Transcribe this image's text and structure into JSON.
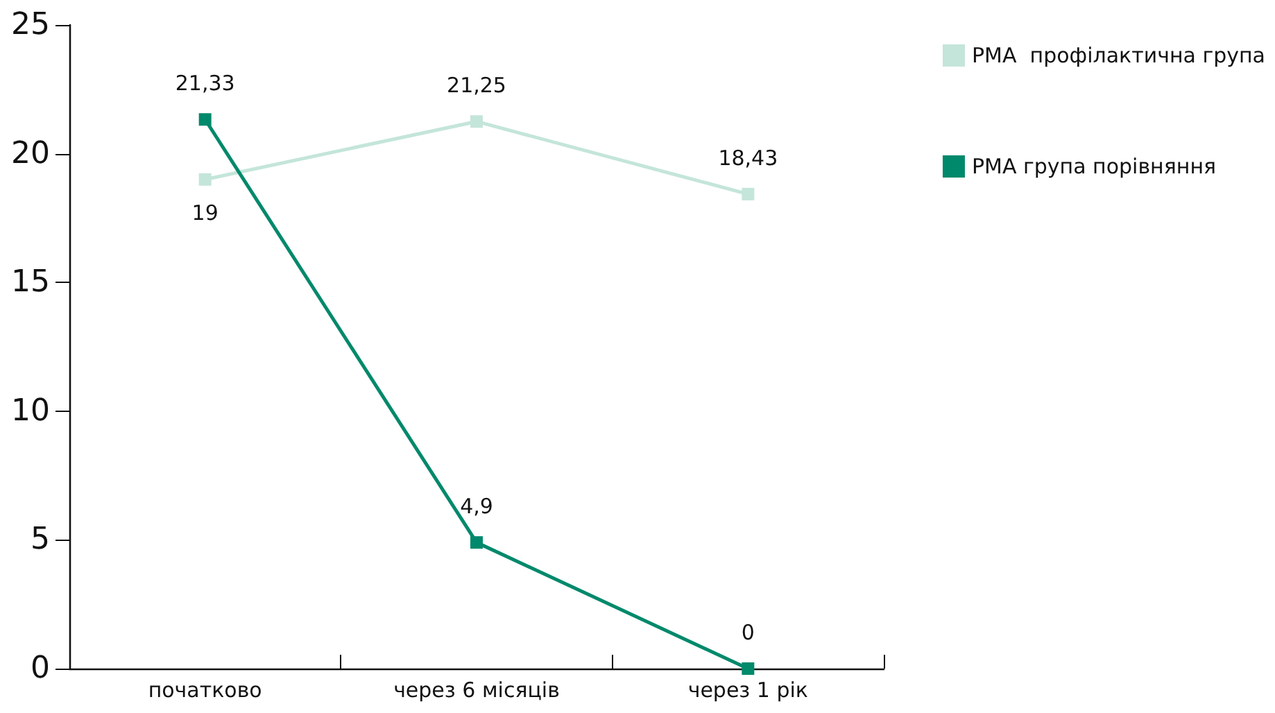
{
  "chart_data": {
    "type": "line",
    "categories": [
      "початково",
      "через 6 місяців",
      "через 1 рік"
    ],
    "series": [
      {
        "name": "РМА  профілактична група",
        "color": "#c4e5da",
        "values": [
          19,
          21.25,
          18.43
        ],
        "value_labels": [
          "19",
          "21,25",
          "18,43"
        ]
      },
      {
        "name": "РМА група порівняння",
        "color": "#00896b",
        "values": [
          21.33,
          4.9,
          0
        ],
        "value_labels": [
          "21,33",
          "4,9",
          "0"
        ]
      }
    ],
    "ylim": [
      0,
      25
    ],
    "yticks": [
      0,
      5,
      10,
      15,
      20,
      25
    ],
    "grid": false,
    "legend": "right",
    "marker": "square",
    "line_style": "solid"
  }
}
